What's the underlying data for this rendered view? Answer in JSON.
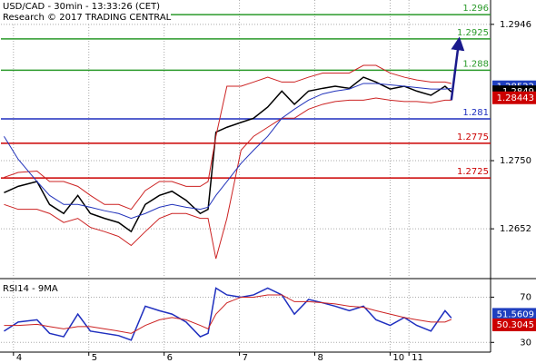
{
  "chart_data": [
    {
      "type": "line",
      "title": "USD/CAD - 30min - 13:33:26 (CET)",
      "subtitle": "Research © 2017 TRADING CENTRAL",
      "xlim": [
        0,
        312
      ],
      "xticks": [
        8,
        56,
        104,
        152,
        200,
        248,
        260
      ],
      "ylim": [
        1.2583,
        1.2981
      ],
      "yticks": [
        1.2652,
        {
          "value": 1.275,
          "label": "1.2750"
        },
        1.2946
      ],
      "grid": true,
      "x": [
        2,
        11,
        23,
        31,
        40,
        49,
        57,
        66,
        75,
        83,
        92,
        101,
        109,
        118,
        127,
        132,
        137,
        144,
        153,
        161,
        170,
        179,
        187,
        196,
        205,
        213,
        222,
        231,
        239,
        248,
        257,
        265,
        274,
        283,
        287
      ],
      "series": [
        {
          "color": "#000000",
          "values": [
            1.2704,
            1.2713,
            1.272,
            1.2687,
            1.2674,
            1.27,
            1.2674,
            1.2667,
            1.2661,
            1.2648,
            1.2687,
            1.27,
            1.2706,
            1.2693,
            1.2674,
            1.268,
            1.2791,
            1.2798,
            1.2805,
            1.2811,
            1.2827,
            1.285,
            1.2831,
            1.285,
            1.2854,
            1.2857,
            1.2854,
            1.287,
            1.2863,
            1.2853,
            1.2857,
            1.285,
            1.2844,
            1.2857,
            1.2849
          ]
        },
        {
          "color": "#cc2222",
          "values": [
            1.2726,
            1.2733,
            1.2735,
            1.272,
            1.272,
            1.2713,
            1.27,
            1.2687,
            1.2687,
            1.268,
            1.2707,
            1.272,
            1.272,
            1.2713,
            1.2713,
            1.272,
            1.2785,
            1.2857,
            1.2857,
            1.2863,
            1.287,
            1.2863,
            1.2863,
            1.287,
            1.2876,
            1.2876,
            1.2876,
            1.2887,
            1.2887,
            1.2876,
            1.287,
            1.2866,
            1.2863,
            1.2863,
            1.2861
          ]
        },
        {
          "color": "#cc2222",
          "values": [
            1.2687,
            1.268,
            1.268,
            1.2674,
            1.2661,
            1.2667,
            1.2654,
            1.2648,
            1.2641,
            1.2628,
            1.2648,
            1.2667,
            1.2674,
            1.2674,
            1.2667,
            1.2667,
            1.2609,
            1.2667,
            1.2765,
            1.2785,
            1.2798,
            1.2811,
            1.2811,
            1.2824,
            1.2831,
            1.2835,
            1.2837,
            1.2837,
            1.284,
            1.2837,
            1.2835,
            1.2835,
            1.2833,
            1.2837,
            1.2837
          ]
        },
        {
          "color": "#2233bb",
          "values": [
            1.2785,
            1.2752,
            1.272,
            1.27,
            1.2687,
            1.2687,
            1.2683,
            1.2678,
            1.2674,
            1.2667,
            1.2674,
            1.2683,
            1.2687,
            1.2683,
            1.268,
            1.2683,
            1.27,
            1.272,
            1.2746,
            1.2765,
            1.2785,
            1.2811,
            1.2824,
            1.2837,
            1.2846,
            1.285,
            1.2853,
            1.2861,
            1.2861,
            1.2859,
            1.2857,
            1.2855,
            1.2853,
            1.2853,
            1.2854
          ]
        }
      ],
      "levels": [
        {
          "value": 1.296,
          "color": "#2a9a2a"
        },
        {
          "value": 1.2925,
          "color": "#2a9a2a"
        },
        {
          "value": 1.288,
          "color": "#2a9a2a"
        },
        {
          "value": 1.281,
          "color": "#1f2fbf"
        },
        {
          "value": 1.2775,
          "color": "#cc0000"
        },
        {
          "value": 1.2725,
          "color": "#cc0000"
        }
      ],
      "price_tags": [
        {
          "value": 1.28522,
          "color": "#1f3fbf"
        },
        {
          "value": 1.2849,
          "color": "#000000"
        },
        {
          "value": 1.28443,
          "color": "#cc0000"
        }
      ],
      "arrow": {
        "x": [
          287,
          292
        ],
        "values": [
          1.2837,
          1.2925
        ],
        "color": "#1a1a8c"
      }
    },
    {
      "type": "line",
      "title": "RSI14 - 9MA",
      "xlim": [
        0,
        312
      ],
      "xticks": [
        {
          "value": 8,
          "label": "4"
        },
        {
          "value": 56,
          "label": "5"
        },
        {
          "value": 104,
          "label": "6"
        },
        {
          "value": 152,
          "label": "7"
        },
        {
          "value": 200,
          "label": "8"
        },
        {
          "value": 248,
          "label": "10"
        },
        {
          "value": 260,
          "label": "11"
        }
      ],
      "ylim": [
        23,
        84
      ],
      "yticks": [
        30,
        70
      ],
      "grid": true,
      "x": [
        2,
        11,
        23,
        31,
        40,
        49,
        57,
        66,
        75,
        83,
        92,
        101,
        109,
        118,
        127,
        132,
        137,
        144,
        153,
        161,
        170,
        179,
        187,
        196,
        205,
        213,
        222,
        231,
        239,
        248,
        257,
        265,
        274,
        283,
        287
      ],
      "series": [
        {
          "color": "#1f2fbf",
          "values": [
            40,
            48,
            50,
            38,
            35,
            55,
            40,
            38,
            36,
            32,
            62,
            58,
            55,
            48,
            35,
            38,
            78,
            72,
            70,
            72,
            78,
            72,
            55,
            68,
            65,
            62,
            58,
            62,
            50,
            45,
            52,
            45,
            40,
            58,
            51.5609
          ]
        },
        {
          "color": "#cc2222",
          "values": [
            45,
            45,
            46,
            44,
            42,
            44,
            44,
            42,
            40,
            38,
            45,
            50,
            52,
            50,
            45,
            42,
            55,
            65,
            70,
            70,
            72,
            72,
            66,
            66,
            65,
            64,
            62,
            61,
            58,
            55,
            52,
            50,
            48,
            48,
            50.3045
          ]
        }
      ],
      "price_tags": [
        {
          "value": 51.5609,
          "color": "#1f3fbf"
        },
        {
          "value": 50.3045,
          "color": "#cc0000"
        }
      ]
    }
  ]
}
